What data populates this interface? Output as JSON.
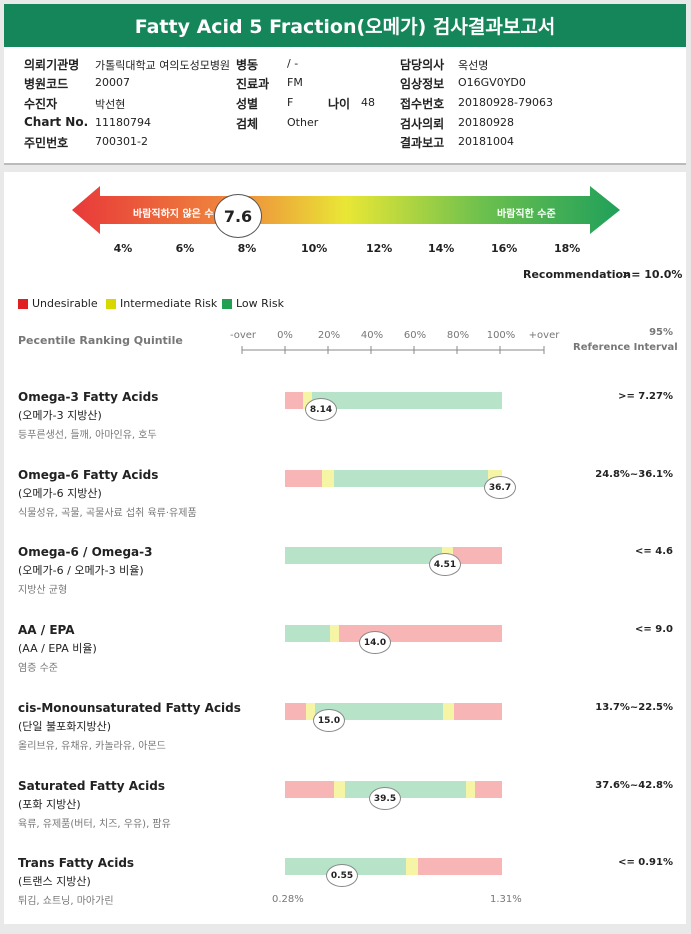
{
  "header": {
    "title": "Fatty Acid 5 Fraction(오메가) 검사결과보고서"
  },
  "info": [
    {
      "label": "의뢰기관명",
      "value": "가톨릭대학교 여의도성모병원"
    },
    {
      "label": "병동",
      "value": "/ -"
    },
    {
      "label": "담당의사",
      "value": "옥선명"
    },
    {
      "label": "병원코드",
      "value": "20007"
    },
    {
      "label": "진료과",
      "value": "FM"
    },
    {
      "label": "임상정보",
      "value": "O16GV0YD0"
    },
    {
      "label": "수진자",
      "value": "박선현"
    },
    {
      "label": "성별",
      "value": "F"
    },
    {
      "label": "나이",
      "value": "48"
    },
    {
      "label": "접수번호",
      "value": "20180928-79063"
    },
    {
      "label": "Chart No.",
      "value": "11180794"
    },
    {
      "label": "검체",
      "value": "Other"
    },
    {
      "label": "검사의뢰",
      "value": "20180928"
    },
    {
      "label": "주민번호",
      "value": "700301-2"
    },
    {
      "label": "결과보고",
      "value": "20181004"
    }
  ],
  "index": {
    "low_label": "바람직하지 않은 수",
    "high_label": "바람직한 수준",
    "value": "7.6",
    "scale": [
      "4%",
      "6%",
      "8%",
      "10%",
      "12%",
      "14%",
      "16%",
      "18%"
    ],
    "recommendation_label": "Recommendation",
    "recommendation": ">= 10.0%"
  },
  "legend": [
    "Undesirable",
    "Intermediate Risk",
    "Low Risk"
  ],
  "table_header": {
    "quintile_label": "Pecentile Ranking Quintile",
    "scale": [
      "-over",
      "0%",
      "20%",
      "40%",
      "60%",
      "80%",
      "100%",
      "+over"
    ],
    "interval_label": [
      "95%",
      "Reference Interval"
    ]
  },
  "rows": [
    {
      "name": "Omega-3 Fatty Acids",
      "korean": "(오메가-3 지방산)",
      "foods": "등푸른생선, 들깨, 아마인유, 호두",
      "result": "8.14",
      "reference": ">= 7.27%"
    },
    {
      "name": "Omega-6 Fatty Acids",
      "korean": "(오메가-6 지방산)",
      "foods": "식물성유, 곡물, 곡물사료 섭취 육류·유제품",
      "result": "36.7",
      "reference": "24.8%~36.1%"
    },
    {
      "name": "Omega-6 / Omega-3",
      "korean": "(오메가-6 / 오메가-3 비율)",
      "foods": "지방산 균형",
      "result": "4.51",
      "reference": "<= 4.6"
    },
    {
      "name": "AA / EPA",
      "korean": "(AA / EPA 비율)",
      "foods": "염증 수준",
      "result": "14.0",
      "reference": "<= 9.0"
    },
    {
      "name": "cis-Monounsaturated Fatty Acids",
      "korean": "(단일 불포화지방산)",
      "foods": "올리브유, 유채유, 카놀라유, 아몬드",
      "result": "15.0",
      "reference": "13.7%~22.5%"
    },
    {
      "name": "Saturated Fatty Acids",
      "korean": "(포화 지방산)",
      "foods": "육류, 유제품(버터, 치즈, 우유), 팜유",
      "result": "39.5",
      "reference": "37.6%~42.8%"
    },
    {
      "name": "Trans Fatty Acids",
      "korean": "(트랜스 지방산)",
      "foods": "튀김, 쇼트닝, 마아가린",
      "result": "0.55",
      "reference": "<= 0.91%"
    }
  ],
  "trans_range": [
    "0.28%",
    "1.31%"
  ]
}
